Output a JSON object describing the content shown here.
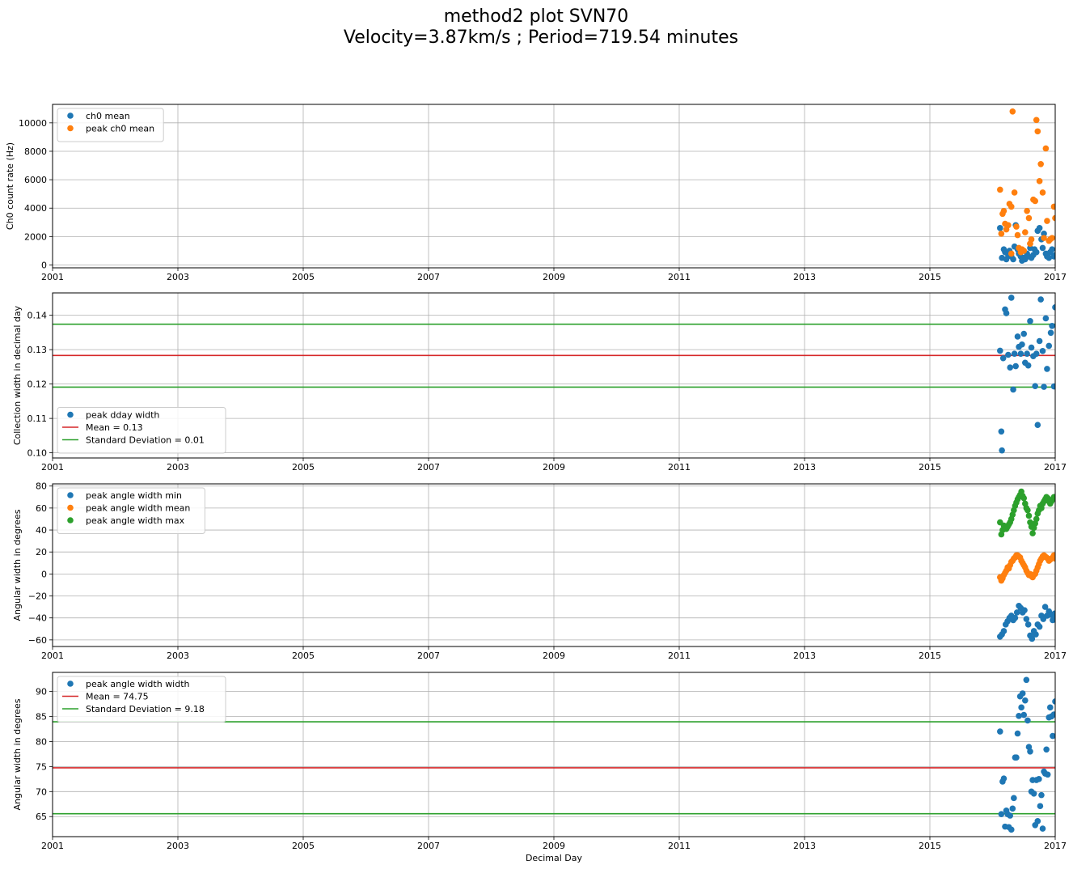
{
  "figure": {
    "title_line1": "method2 plot SVN70",
    "title_line2": "Velocity=3.87km/s ; Period=719.54 minutes",
    "x_tick_labels": [
      "2001",
      "2003",
      "2005",
      "2007",
      "2009",
      "2011",
      "2013",
      "2015",
      "2017"
    ],
    "xlabel": "Decimal Day"
  },
  "colors": {
    "blue": "#1f77b4",
    "orange": "#ff7f0e",
    "green": "#2ca02c",
    "red": "#d62728"
  },
  "chart_data": [
    {
      "type": "scatter",
      "ylabel": "Ch0 count rate (Hz)",
      "xlim": [
        2001,
        2017
      ],
      "ylim": [
        -200,
        11300
      ],
      "yticks": [
        0,
        2000,
        4000,
        6000,
        8000,
        10000
      ],
      "yticklabels": [
        "0",
        "2000",
        "4000",
        "6000",
        "8000",
        "10000"
      ],
      "legend_loc": "upper left",
      "series": [
        {
          "name": "ch0 mean",
          "color": "#1f77b4",
          "x": [
            2016.12,
            2016.15,
            2016.18,
            2016.2,
            2016.22,
            2016.25,
            2016.27,
            2016.3,
            2016.33,
            2016.35,
            2016.37,
            2016.4,
            2016.42,
            2016.45,
            2016.47,
            2016.5,
            2016.52,
            2016.55,
            2016.57,
            2016.6,
            2016.62,
            2016.65,
            2016.67,
            2016.7,
            2016.72,
            2016.75,
            2016.78,
            2016.8,
            2016.82,
            2016.85,
            2016.87,
            2016.9,
            2016.92,
            2016.95,
            2016.98,
            2017.0
          ],
          "y": [
            2600,
            500,
            1100,
            900,
            400,
            700,
            1000,
            600,
            400,
            1300,
            2800,
            1100,
            800,
            600,
            300,
            500,
            400,
            800,
            600,
            1200,
            500,
            700,
            1100,
            900,
            2400,
            2600,
            1800,
            1200,
            2200,
            800,
            600,
            500,
            900,
            1100,
            600,
            700
          ]
        },
        {
          "name": "peak ch0 mean",
          "color": "#ff7f0e",
          "x": [
            2016.12,
            2016.14,
            2016.16,
            2016.18,
            2016.2,
            2016.22,
            2016.25,
            2016.27,
            2016.3,
            2016.32,
            2016.35,
            2016.38,
            2016.4,
            2016.42,
            2016.45,
            2016.47,
            2016.5,
            2016.52,
            2016.55,
            2016.58,
            2016.6,
            2016.62,
            2016.65,
            2016.68,
            2016.7,
            2016.72,
            2016.75,
            2016.77,
            2016.8,
            2016.82,
            2016.85,
            2016.87,
            2016.9,
            2016.92,
            2016.95,
            2016.98,
            2017.0,
            2016.3,
            2016.45,
            2016.6
          ],
          "y": [
            5300,
            2200,
            3600,
            3800,
            2900,
            2500,
            2800,
            4300,
            4100,
            10800,
            5100,
            2700,
            2100,
            1200,
            900,
            1100,
            1000,
            2300,
            3800,
            3300,
            1500,
            1800,
            4600,
            4500,
            10200,
            9400,
            5900,
            7100,
            5100,
            1900,
            8200,
            3100,
            1700,
            1800,
            1900,
            4100,
            3300,
            800,
            1100,
            1500
          ]
        }
      ]
    },
    {
      "type": "scatter",
      "ylabel": "Collection width in decimal day",
      "xlim": [
        2001,
        2017
      ],
      "ylim": [
        0.0985,
        0.1465
      ],
      "yticks": [
        0.1,
        0.11,
        0.12,
        0.13,
        0.14
      ],
      "yticklabels": [
        "0.10",
        "0.11",
        "0.12",
        "0.13",
        "0.14"
      ],
      "legend_loc": "lower left",
      "hlines": [
        {
          "name": "Mean = 0.13",
          "y": 0.1283,
          "color": "#d62728"
        },
        {
          "name": "Standard Deviation = 0.01",
          "y": 0.1374,
          "color": "#2ca02c",
          "in_legend": true
        },
        {
          "name": "",
          "y": 0.1191,
          "color": "#2ca02c",
          "in_legend": false
        }
      ],
      "series": [
        {
          "name": "peak dday width",
          "color": "#1f77b4",
          "x": [
            2016.12,
            2016.15,
            2016.17,
            2016.2,
            2016.22,
            2016.25,
            2016.28,
            2016.3,
            2016.33,
            2016.35,
            2016.37,
            2016.4,
            2016.42,
            2016.45,
            2016.47,
            2016.5,
            2016.52,
            2016.55,
            2016.57,
            2016.6,
            2016.62,
            2016.65,
            2016.68,
            2016.7,
            2016.72,
            2016.75,
            2016.77,
            2016.8,
            2016.82,
            2016.85,
            2016.87,
            2016.9,
            2016.93,
            2016.95,
            2016.98,
            2017.0,
            2016.14
          ],
          "y": [
            0.1297,
            0.1007,
            0.1275,
            0.1417,
            0.1406,
            0.1285,
            0.1248,
            0.1451,
            0.1184,
            0.1288,
            0.1252,
            0.1338,
            0.1308,
            0.1288,
            0.1315,
            0.1346,
            0.1262,
            0.1288,
            0.1254,
            0.1383,
            0.1306,
            0.1281,
            0.1194,
            0.1288,
            0.1081,
            0.1325,
            0.1446,
            0.1296,
            0.1192,
            0.1391,
            0.1244,
            0.1311,
            0.1349,
            0.1369,
            0.1193,
            0.1423,
            0.1062
          ]
        }
      ]
    },
    {
      "type": "scatter",
      "ylabel": "Angular width in degrees",
      "xlim": [
        2001,
        2017
      ],
      "ylim": [
        -66,
        82
      ],
      "yticks": [
        -60,
        -40,
        -20,
        0,
        20,
        40,
        60,
        80
      ],
      "yticklabels": [
        "−60",
        "−40",
        "−20",
        "0",
        "20",
        "40",
        "60",
        "80"
      ],
      "legend_loc": "upper left",
      "series": [
        {
          "name": "peak angle width min",
          "color": "#1f77b4",
          "x": [
            2016.12,
            2016.15,
            2016.18,
            2016.21,
            2016.24,
            2016.27,
            2016.3,
            2016.33,
            2016.36,
            2016.39,
            2016.42,
            2016.45,
            2016.48,
            2016.51,
            2016.54,
            2016.57,
            2016.6,
            2016.63,
            2016.66,
            2016.69,
            2016.72,
            2016.75,
            2016.78,
            2016.81,
            2016.84,
            2016.87,
            2016.9,
            2016.93,
            2016.96,
            2016.99,
            2017.0
          ],
          "y": [
            -57,
            -55,
            -52,
            -46,
            -43,
            -40,
            -38,
            -42,
            -40,
            -35,
            -29,
            -31,
            -35,
            -33,
            -41,
            -46,
            -56,
            -59,
            -52,
            -55,
            -46,
            -48,
            -38,
            -41,
            -30,
            -38,
            -34,
            -37,
            -42,
            -36,
            -40
          ]
        },
        {
          "name": "peak angle width mean",
          "color": "#ff7f0e",
          "x": [
            2016.12,
            2016.14,
            2016.16,
            2016.18,
            2016.2,
            2016.22,
            2016.24,
            2016.26,
            2016.28,
            2016.3,
            2016.32,
            2016.34,
            2016.36,
            2016.38,
            2016.4,
            2016.42,
            2016.44,
            2016.46,
            2016.48,
            2016.5,
            2016.52,
            2016.54,
            2016.56,
            2016.58,
            2016.6,
            2016.62,
            2016.64,
            2016.66,
            2016.68,
            2016.7,
            2016.72,
            2016.74,
            2016.76,
            2016.78,
            2016.8,
            2016.82,
            2016.84,
            2016.86,
            2016.88,
            2016.9,
            2016.92,
            2016.94,
            2016.96,
            2016.98,
            2017.0
          ],
          "y": [
            -3,
            -6,
            -4,
            -1,
            1,
            3,
            6,
            5,
            8,
            11,
            12,
            14,
            15,
            17,
            17,
            16,
            15,
            12,
            10,
            8,
            6,
            3,
            1,
            -1,
            0,
            -2,
            -3,
            -1,
            0,
            3,
            6,
            9,
            12,
            14,
            16,
            17,
            16,
            15,
            14,
            12,
            13,
            14,
            15,
            17,
            14
          ]
        },
        {
          "name": "peak angle width max",
          "color": "#2ca02c",
          "x": [
            2016.12,
            2016.14,
            2016.16,
            2016.18,
            2016.2,
            2016.22,
            2016.24,
            2016.26,
            2016.28,
            2016.3,
            2016.32,
            2016.34,
            2016.36,
            2016.38,
            2016.4,
            2016.42,
            2016.44,
            2016.46,
            2016.48,
            2016.5,
            2016.52,
            2016.54,
            2016.56,
            2016.58,
            2016.6,
            2016.62,
            2016.64,
            2016.66,
            2016.68,
            2016.7,
            2016.72,
            2016.74,
            2016.76,
            2016.78,
            2016.8,
            2016.82,
            2016.84,
            2016.86,
            2016.88,
            2016.9,
            2016.92,
            2016.94,
            2016.96,
            2016.98,
            2017.0
          ],
          "y": [
            47,
            36,
            40,
            44,
            42,
            41,
            43,
            45,
            47,
            50,
            54,
            58,
            62,
            65,
            68,
            70,
            72,
            75,
            71,
            69,
            64,
            60,
            58,
            53,
            47,
            43,
            37,
            42,
            46,
            50,
            55,
            58,
            62,
            60,
            64,
            66,
            68,
            70,
            69,
            66,
            64,
            66,
            68,
            70,
            70
          ]
        }
      ]
    },
    {
      "type": "scatter",
      "ylabel": "Angular width in degrees",
      "xlabel": "Decimal Day",
      "xlim": [
        2001,
        2017
      ],
      "ylim": [
        61,
        93.8
      ],
      "yticks": [
        65,
        70,
        75,
        80,
        85,
        90
      ],
      "yticklabels": [
        "65",
        "70",
        "75",
        "80",
        "85",
        "90"
      ],
      "legend_loc": "upper left",
      "hlines": [
        {
          "name": "Mean = 74.75",
          "y": 74.75,
          "color": "#d62728"
        },
        {
          "name": "Standard Deviation = 9.18",
          "y": 83.93,
          "color": "#2ca02c",
          "in_legend": true
        },
        {
          "name": "",
          "y": 65.57,
          "color": "#2ca02c",
          "in_legend": false
        }
      ],
      "series": [
        {
          "name": "peak angle width width",
          "color": "#1f77b4",
          "x": [
            2016.12,
            2016.14,
            2016.16,
            2016.18,
            2016.2,
            2016.22,
            2016.24,
            2016.26,
            2016.28,
            2016.3,
            2016.32,
            2016.34,
            2016.36,
            2016.38,
            2016.4,
            2016.42,
            2016.44,
            2016.46,
            2016.48,
            2016.5,
            2016.52,
            2016.54,
            2016.56,
            2016.58,
            2016.6,
            2016.62,
            2016.64,
            2016.66,
            2016.68,
            2016.7,
            2016.72,
            2016.74,
            2016.76,
            2016.78,
            2016.8,
            2016.82,
            2016.84,
            2016.86,
            2016.88,
            2016.9,
            2016.92,
            2016.94,
            2016.96,
            2016.98,
            2017.0
          ],
          "y": [
            82,
            65.5,
            72,
            72.6,
            63,
            66.2,
            65.5,
            62.9,
            65.2,
            62.4,
            66.6,
            68.7,
            76.8,
            76.8,
            81.6,
            85.1,
            89,
            86.8,
            89.6,
            85.3,
            88.2,
            92.3,
            84.2,
            78.9,
            78,
            70,
            72.3,
            69.6,
            63.3,
            72.3,
            64.1,
            72.5,
            67.1,
            69.3,
            62.6,
            74,
            73.6,
            78.4,
            73.4,
            84.8,
            86.8,
            85,
            81.1,
            85.4,
            88
          ]
        }
      ]
    }
  ]
}
